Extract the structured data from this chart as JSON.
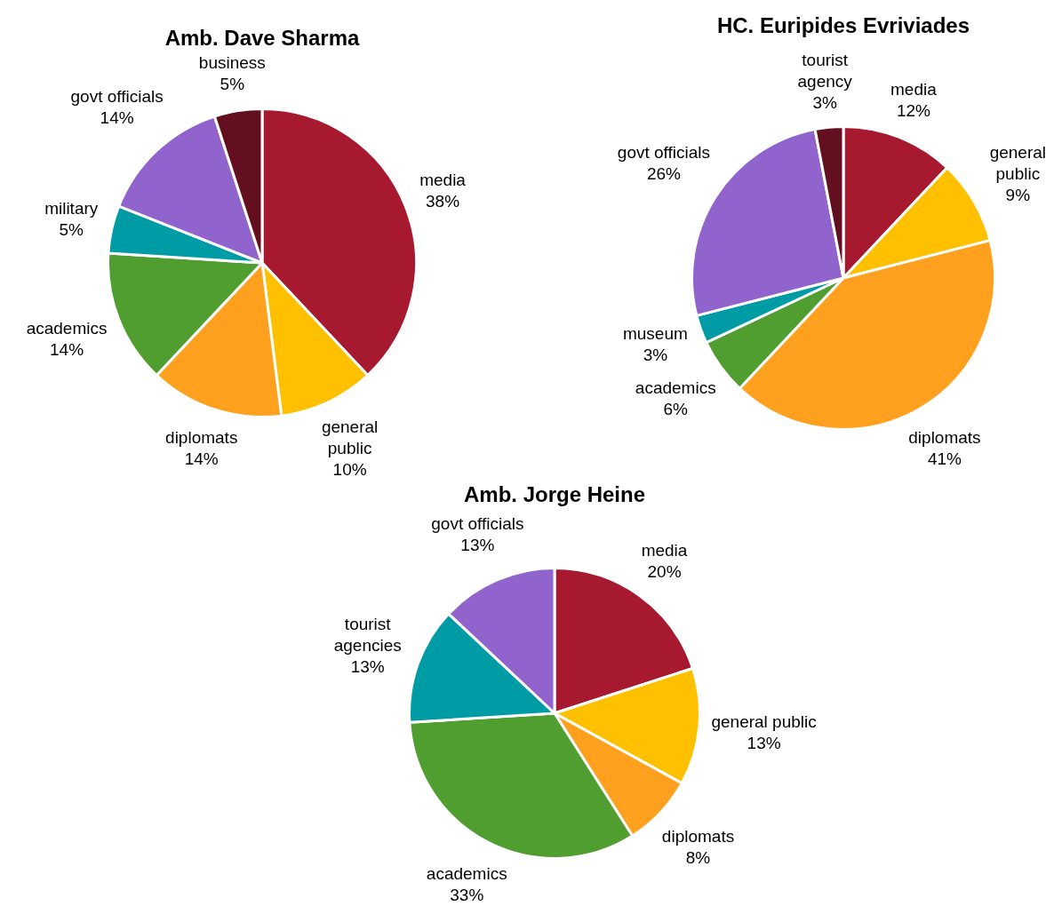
{
  "chart_data": [
    {
      "type": "pie",
      "title": "Amb. Dave Sharma",
      "categories": [
        "media",
        "general public",
        "diplomats",
        "academics",
        "military",
        "govt officials",
        "business"
      ],
      "values": [
        38,
        10,
        14,
        14,
        5,
        14,
        5
      ],
      "value_labels": [
        "38%",
        "10%",
        "14%",
        "14%",
        "5%",
        "14%",
        "5%"
      ],
      "colors": [
        "#a6192e",
        "#ffc000",
        "#ffa01e",
        "#509e2f",
        "#009ca6",
        "#9063cd",
        "#640f1f"
      ],
      "legend": false
    },
    {
      "type": "pie",
      "title": "HC. Euripides Evriviades",
      "categories": [
        "media",
        "general public",
        "diplomats",
        "academics",
        "museum",
        "govt officials",
        "tourist agency"
      ],
      "values": [
        12,
        9,
        41,
        6,
        3,
        26,
        3
      ],
      "value_labels": [
        "12%",
        "9%",
        "41%",
        "6%",
        "3%",
        "26%",
        "3%"
      ],
      "colors": [
        "#a6192e",
        "#ffc000",
        "#ffa01e",
        "#509e2f",
        "#009ca6",
        "#9063cd",
        "#640f1f"
      ],
      "legend": false
    },
    {
      "type": "pie",
      "title": "Amb. Jorge Heine",
      "categories": [
        "media",
        "general public",
        "diplomats",
        "academics",
        "tourist agencies",
        "govt officials"
      ],
      "values": [
        20,
        13,
        8,
        33,
        13,
        13
      ],
      "value_labels": [
        "20%",
        "13%",
        "8%",
        "33%",
        "13%",
        "13%"
      ],
      "colors": [
        "#a6192e",
        "#ffc000",
        "#ffa01e",
        "#509e2f",
        "#009ca6",
        "#9063cd"
      ],
      "legend": false
    }
  ]
}
